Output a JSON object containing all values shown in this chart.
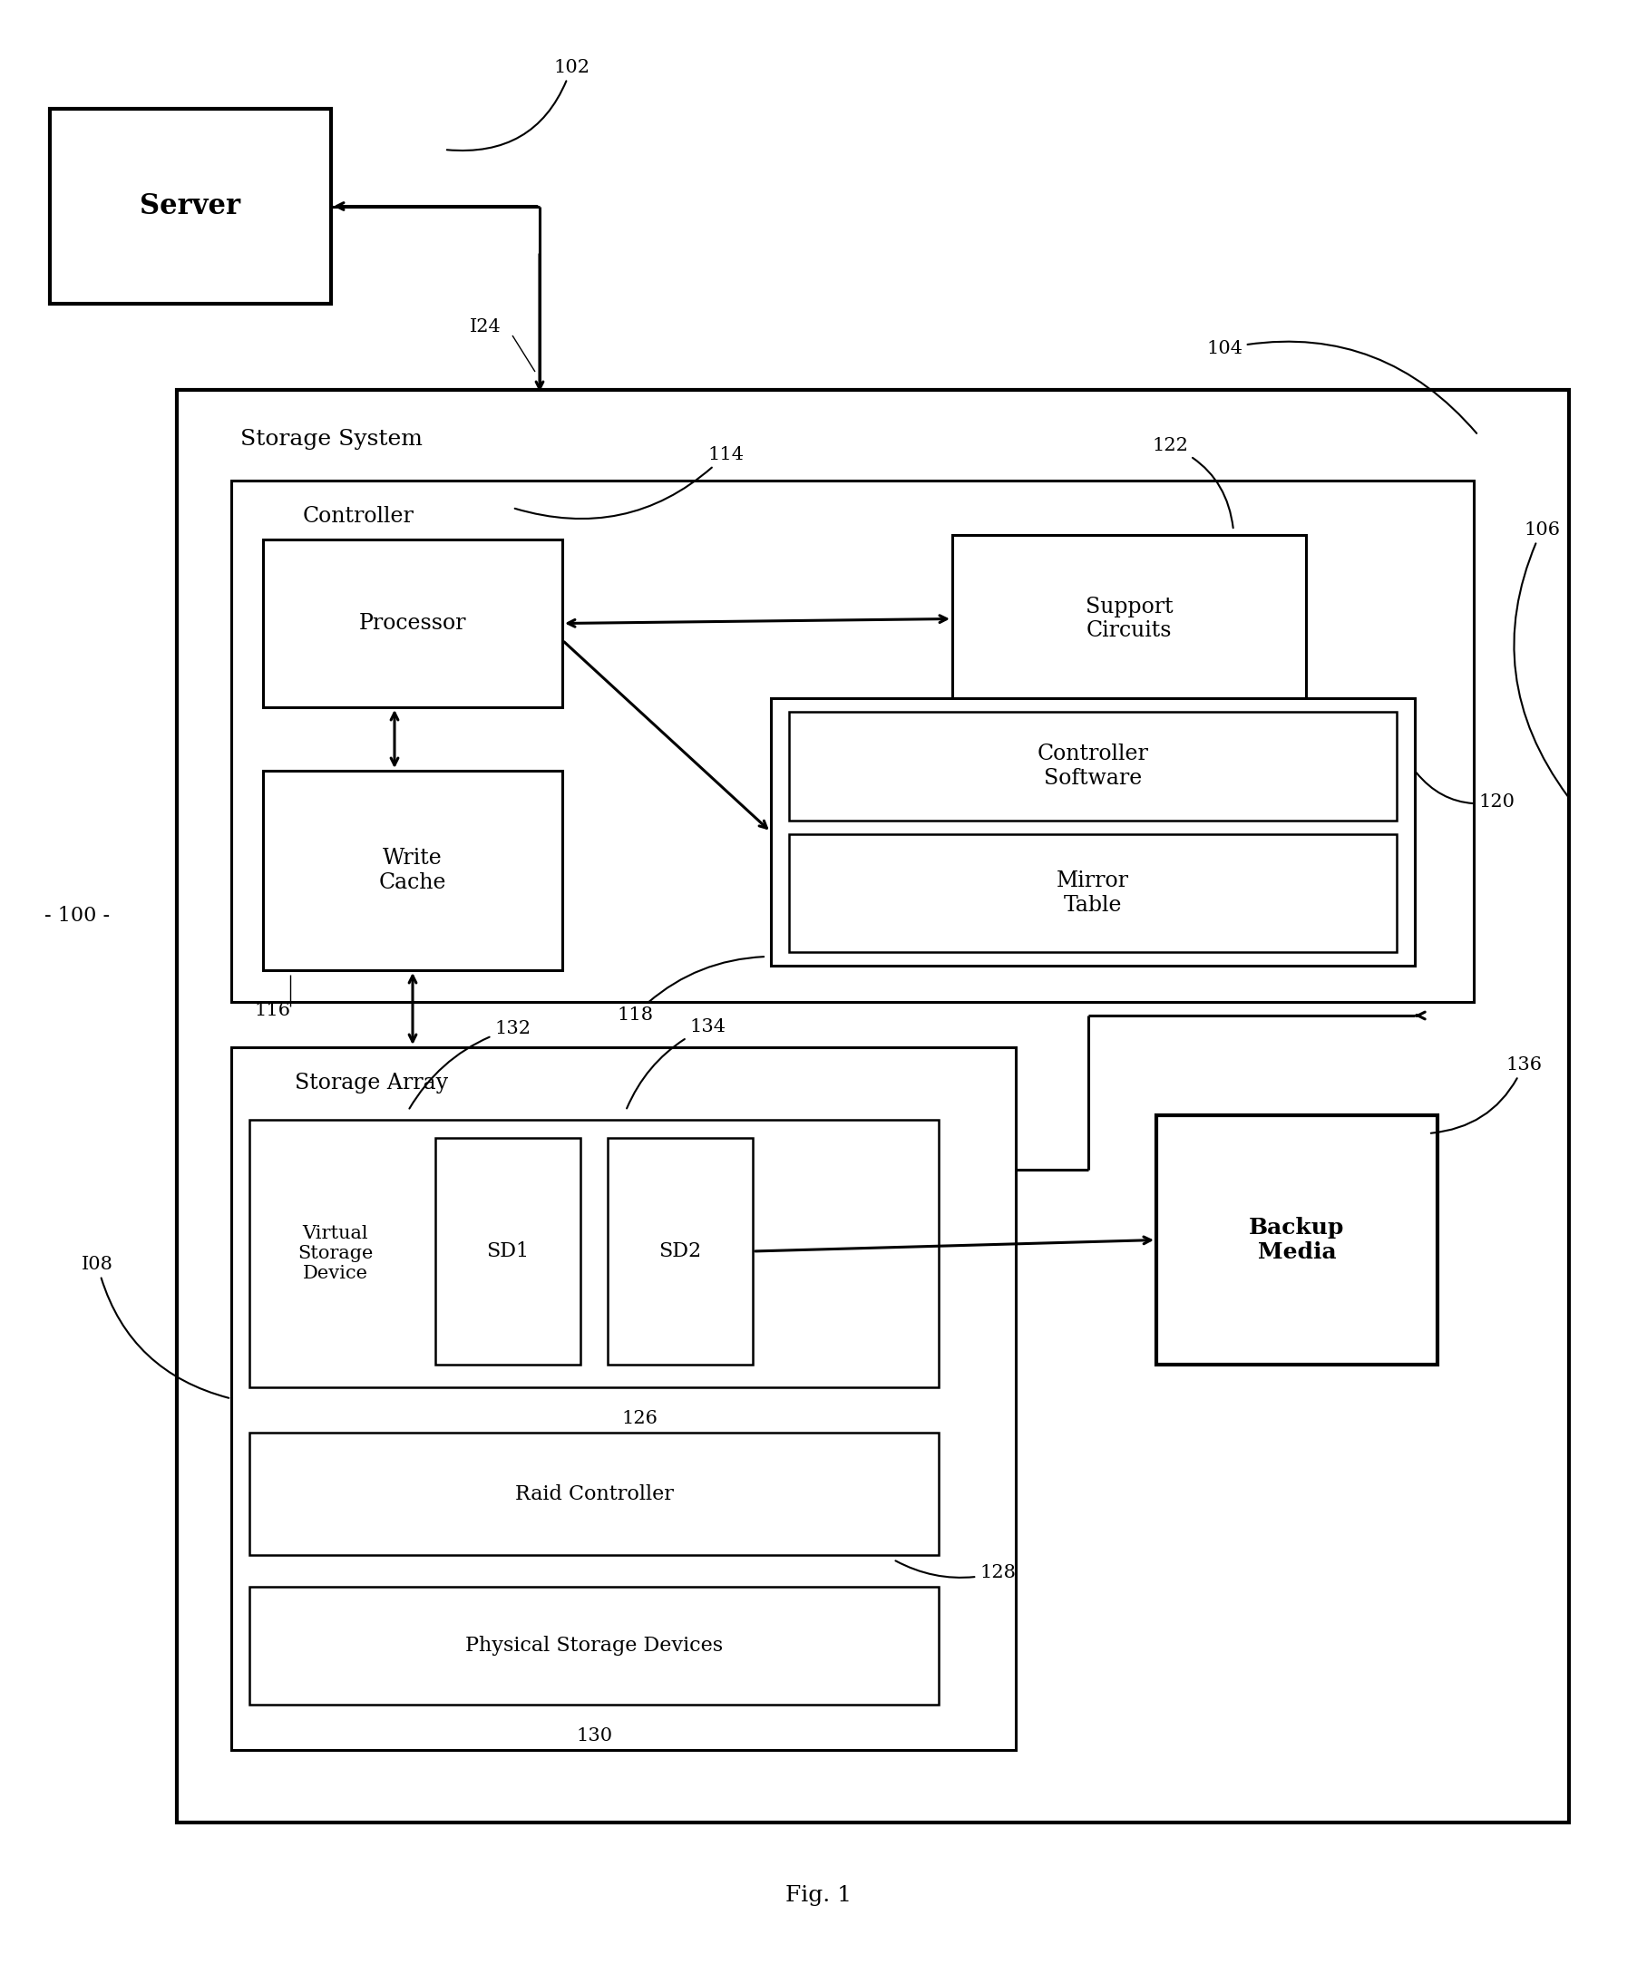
{
  "fig_label": "Fig. 1",
  "bg_color": "#ffffff",
  "line_color": "#000000",
  "box_fill": "#ffffff",
  "font_family": "DejaVu Serif",
  "label_100": "- 100 -",
  "label_102": "102",
  "label_104": "104",
  "label_106": "106",
  "label_108": "I08",
  "label_114": "114",
  "label_116": "116",
  "label_118": "118",
  "label_120": "120",
  "label_122": "122",
  "label_124": "I24",
  "label_126": "126",
  "label_128": "128",
  "label_130": "130",
  "label_132": "132",
  "label_134": "134",
  "label_136": "136",
  "text_server": "Server",
  "text_storage_system": "Storage System",
  "text_controller": "Controller",
  "text_processor": "Processor",
  "text_support_circuits": "Support\nCircuits",
  "text_write_cache": "Write\nCache",
  "text_controller_software": "Controller\nSoftware",
  "text_mirror_table": "Mirror\nTable",
  "text_storage_array": "Storage Array",
  "text_virtual_storage": "Virtual\nStorage\nDevice",
  "text_sd1": "SD1",
  "text_sd2": "SD2",
  "text_raid": "Raid Controller",
  "text_physical": "Physical Storage Devices",
  "text_backup": "Backup\nMedia"
}
